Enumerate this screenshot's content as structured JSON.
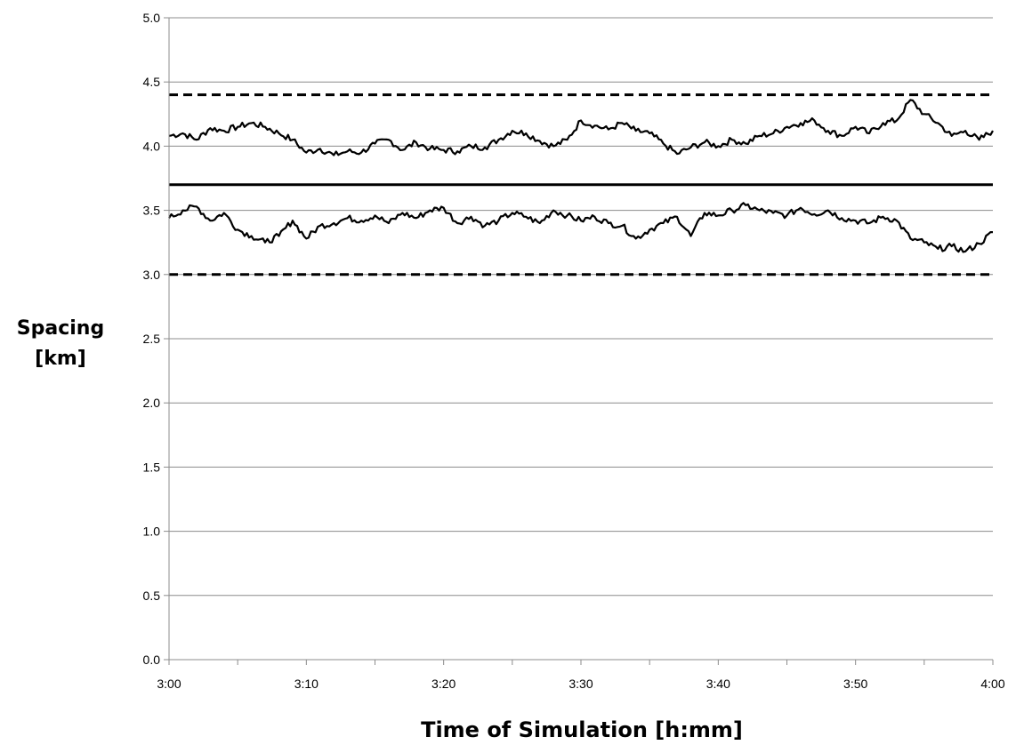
{
  "chart_data": {
    "type": "line",
    "title": "",
    "xlabel": "Time of Simulation [h:mm]",
    "ylabel": [
      "Spacing",
      "[km]"
    ],
    "x_tick_labels": [
      "3:00",
      "3:10",
      "3:20",
      "3:30",
      "3:40",
      "3:50",
      "4:00"
    ],
    "x_range_minutes": [
      180,
      240
    ],
    "ylim": [
      0.0,
      5.0
    ],
    "y_tick_labels": [
      "0.0",
      "0.5",
      "1.0",
      "1.5",
      "2.0",
      "2.5",
      "3.0",
      "3.5",
      "4.0",
      "4.5",
      "5.0"
    ],
    "grid": "horizontal",
    "legend": "none",
    "reference_lines": [
      {
        "y": 4.4,
        "style": "dashed"
      },
      {
        "y": 3.7,
        "style": "solid"
      },
      {
        "y": 3.0,
        "style": "dashed"
      }
    ],
    "series": [
      {
        "style": "solid",
        "x_minutes": [
          180,
          181,
          182,
          183,
          184,
          185,
          186,
          187,
          188,
          189,
          190,
          191,
          192,
          193,
          194,
          195,
          196,
          197,
          198,
          199,
          200,
          201,
          202,
          203,
          204,
          205,
          206,
          207,
          208,
          209,
          210,
          211,
          212,
          213,
          214,
          215,
          216,
          217,
          218,
          219,
          220,
          221,
          222,
          223,
          224,
          225,
          226,
          227,
          228,
          229,
          230,
          231,
          232,
          233,
          234,
          235,
          236,
          237,
          238,
          239,
          240
        ],
        "values": [
          4.08,
          4.1,
          4.05,
          4.14,
          4.12,
          4.15,
          4.18,
          4.15,
          4.1,
          4.05,
          3.95,
          3.98,
          3.93,
          3.96,
          3.95,
          4.02,
          4.05,
          3.97,
          4.03,
          3.98,
          3.97,
          3.96,
          4.0,
          3.99,
          4.05,
          4.12,
          4.1,
          4.04,
          4.0,
          4.05,
          4.2,
          4.16,
          4.13,
          4.18,
          4.12,
          4.1,
          4.02,
          3.94,
          3.99,
          4.03,
          4.0,
          4.05,
          4.02,
          4.08,
          4.1,
          4.15,
          4.18,
          4.2,
          4.12,
          4.08,
          4.15,
          4.1,
          4.18,
          4.2,
          4.36,
          4.25,
          4.18,
          4.08,
          4.12,
          4.05,
          4.12
        ]
      },
      {
        "style": "solid",
        "x_minutes": [
          180,
          181,
          182,
          183,
          184,
          185,
          186,
          187,
          188,
          189,
          190,
          191,
          192,
          193,
          194,
          195,
          196,
          197,
          198,
          199,
          200,
          201,
          202,
          203,
          204,
          205,
          206,
          207,
          208,
          209,
          210,
          211,
          212,
          213,
          214,
          215,
          216,
          217,
          218,
          219,
          220,
          221,
          222,
          223,
          224,
          225,
          226,
          227,
          228,
          229,
          230,
          231,
          232,
          233,
          234,
          235,
          236,
          237,
          238,
          239,
          240
        ],
        "values": [
          3.44,
          3.5,
          3.53,
          3.42,
          3.48,
          3.35,
          3.3,
          3.25,
          3.3,
          3.42,
          3.28,
          3.38,
          3.4,
          3.44,
          3.42,
          3.46,
          3.4,
          3.48,
          3.44,
          3.5,
          3.52,
          3.4,
          3.45,
          3.38,
          3.42,
          3.48,
          3.45,
          3.4,
          3.5,
          3.46,
          3.42,
          3.45,
          3.4,
          3.38,
          3.28,
          3.35,
          3.4,
          3.45,
          3.3,
          3.48,
          3.46,
          3.5,
          3.54,
          3.5,
          3.48,
          3.46,
          3.52,
          3.47,
          3.5,
          3.44,
          3.42,
          3.4,
          3.45,
          3.42,
          3.28,
          3.25,
          3.2,
          3.22,
          3.18,
          3.24,
          3.33
        ]
      }
    ]
  }
}
